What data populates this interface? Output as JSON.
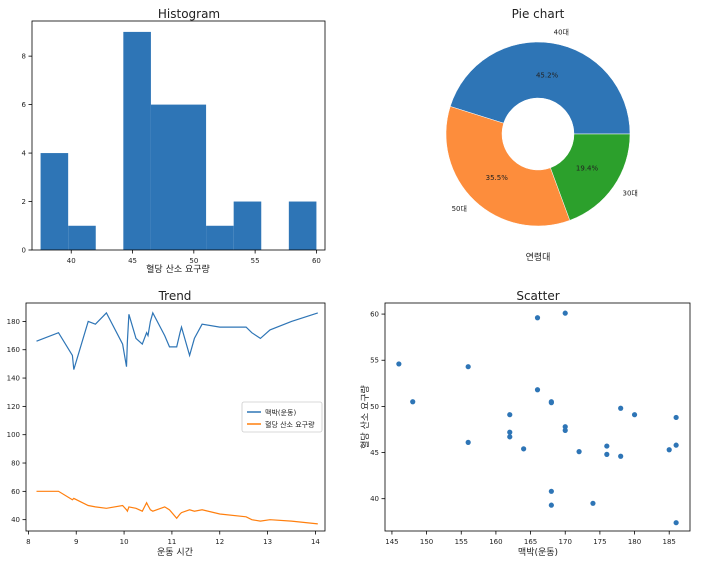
{
  "colors": {
    "blue": "#2e75b6",
    "orange": "#fd8d3c",
    "green": "#2ca02c",
    "axis": "#000000"
  },
  "chart_data": [
    {
      "id": "hist",
      "type": "bar",
      "title": "Histogram",
      "xlabel": "혈당 산소 요구량",
      "ylabel": "",
      "xlim": [
        36.8,
        60.7
      ],
      "ylim": [
        0,
        9.45
      ],
      "xticks": [
        40,
        45,
        50,
        55,
        60
      ],
      "yticks": [
        0,
        2,
        4,
        6,
        8
      ],
      "bins": [
        {
          "x0": 37.5,
          "x1": 39.75,
          "count": 4
        },
        {
          "x0": 39.75,
          "x1": 42.0,
          "count": 1
        },
        {
          "x0": 42.0,
          "x1": 44.25,
          "count": 0
        },
        {
          "x0": 44.25,
          "x1": 46.5,
          "count": 9
        },
        {
          "x0": 46.5,
          "x1": 48.75,
          "count": 6
        },
        {
          "x0": 48.75,
          "x1": 51.0,
          "count": 6
        },
        {
          "x0": 51.0,
          "x1": 53.25,
          "count": 1
        },
        {
          "x0": 53.25,
          "x1": 55.5,
          "count": 2
        },
        {
          "x0": 55.5,
          "x1": 57.75,
          "count": 0
        },
        {
          "x0": 57.75,
          "x1": 60.0,
          "count": 2
        }
      ]
    },
    {
      "id": "pie",
      "type": "pie",
      "title": "Pie chart",
      "xlabel": "연령대",
      "donut": true,
      "slices": [
        {
          "label": "40대",
          "value": 45.2,
          "pct_label": "45.2%",
          "color": "#2e75b6"
        },
        {
          "label": "50대",
          "value": 35.5,
          "pct_label": "35.5%",
          "color": "#fd8d3c"
        },
        {
          "label": "30대",
          "value": 19.4,
          "pct_label": "19.4%",
          "color": "#2ca02c"
        }
      ]
    },
    {
      "id": "trend",
      "type": "line",
      "title": "Trend",
      "xlabel": "운동 시간",
      "ylabel": "",
      "xlim": [
        7.95,
        14.2
      ],
      "ylim": [
        32,
        193
      ],
      "xticks": [
        8,
        9,
        10,
        11,
        12,
        13,
        14
      ],
      "yticks": [
        40,
        60,
        80,
        100,
        120,
        140,
        160,
        180
      ],
      "legend_position": "center-right",
      "series": [
        {
          "name": "맥박(운동)",
          "color": "#2e75b6",
          "x": [
            8.17,
            8.63,
            8.92,
            8.95,
            9.25,
            9.4,
            9.63,
            9.97,
            10.05,
            10.07,
            10.1,
            10.25,
            10.38,
            10.47,
            10.5,
            10.55,
            10.6,
            10.85,
            10.95,
            11.1,
            11.17,
            11.2,
            11.37,
            11.47,
            11.63,
            12.0,
            12.55,
            12.67,
            12.85,
            13.05,
            13.5,
            14.05
          ],
          "y": [
            166,
            172,
            156,
            146,
            180,
            178,
            186,
            164,
            148,
            166,
            185,
            168,
            164,
            172,
            170,
            180,
            186,
            170,
            162,
            162,
            172,
            176,
            156,
            168,
            178,
            176,
            176,
            172,
            168,
            174,
            180,
            186
          ]
        },
        {
          "name": "혈당 산소 요구량",
          "color": "#ff7f0e",
          "x": [
            8.17,
            8.63,
            8.92,
            8.95,
            9.25,
            9.4,
            9.63,
            9.97,
            10.05,
            10.07,
            10.1,
            10.25,
            10.38,
            10.47,
            10.5,
            10.55,
            10.6,
            10.85,
            10.95,
            11.1,
            11.17,
            11.2,
            11.37,
            11.47,
            11.63,
            12.0,
            12.55,
            12.67,
            12.85,
            13.05,
            13.5,
            14.05
          ],
          "y": [
            60,
            60,
            54,
            55,
            50,
            49,
            48,
            50,
            47,
            46,
            49,
            48,
            46,
            52,
            50,
            47,
            46,
            49,
            47,
            41,
            44,
            45,
            47,
            46,
            47,
            44,
            42,
            40,
            39,
            40,
            39,
            37
          ]
        }
      ]
    },
    {
      "id": "scatter",
      "type": "scatter",
      "title": "Scatter",
      "xlabel": "맥박(운동)",
      "ylabel": "혈당 산소 요구량",
      "xlim": [
        144,
        188
      ],
      "ylim": [
        36.5,
        61.2
      ],
      "xticks": [
        145,
        150,
        155,
        160,
        165,
        170,
        175,
        180,
        185
      ],
      "yticks": [
        40,
        45,
        50,
        55,
        60
      ],
      "color": "#2e75b6",
      "points": [
        {
          "x": 146,
          "y": 54.6
        },
        {
          "x": 148,
          "y": 50.5
        },
        {
          "x": 156,
          "y": 54.3
        },
        {
          "x": 156,
          "y": 46.1
        },
        {
          "x": 162,
          "y": 49.1
        },
        {
          "x": 162,
          "y": 47.2
        },
        {
          "x": 162,
          "y": 46.7
        },
        {
          "x": 164,
          "y": 45.4
        },
        {
          "x": 166,
          "y": 59.6
        },
        {
          "x": 166,
          "y": 51.8
        },
        {
          "x": 168,
          "y": 50.5
        },
        {
          "x": 168,
          "y": 50.4
        },
        {
          "x": 168,
          "y": 40.8
        },
        {
          "x": 168,
          "y": 39.3
        },
        {
          "x": 170,
          "y": 60.1
        },
        {
          "x": 170,
          "y": 47.8
        },
        {
          "x": 170,
          "y": 47.4
        },
        {
          "x": 172,
          "y": 45.1
        },
        {
          "x": 174,
          "y": 39.5
        },
        {
          "x": 176,
          "y": 45.7
        },
        {
          "x": 176,
          "y": 44.8
        },
        {
          "x": 178,
          "y": 49.8
        },
        {
          "x": 178,
          "y": 44.6
        },
        {
          "x": 180,
          "y": 49.1
        },
        {
          "x": 185,
          "y": 45.3
        },
        {
          "x": 186,
          "y": 48.8
        },
        {
          "x": 186,
          "y": 45.8
        },
        {
          "x": 186,
          "y": 37.4
        }
      ]
    }
  ]
}
